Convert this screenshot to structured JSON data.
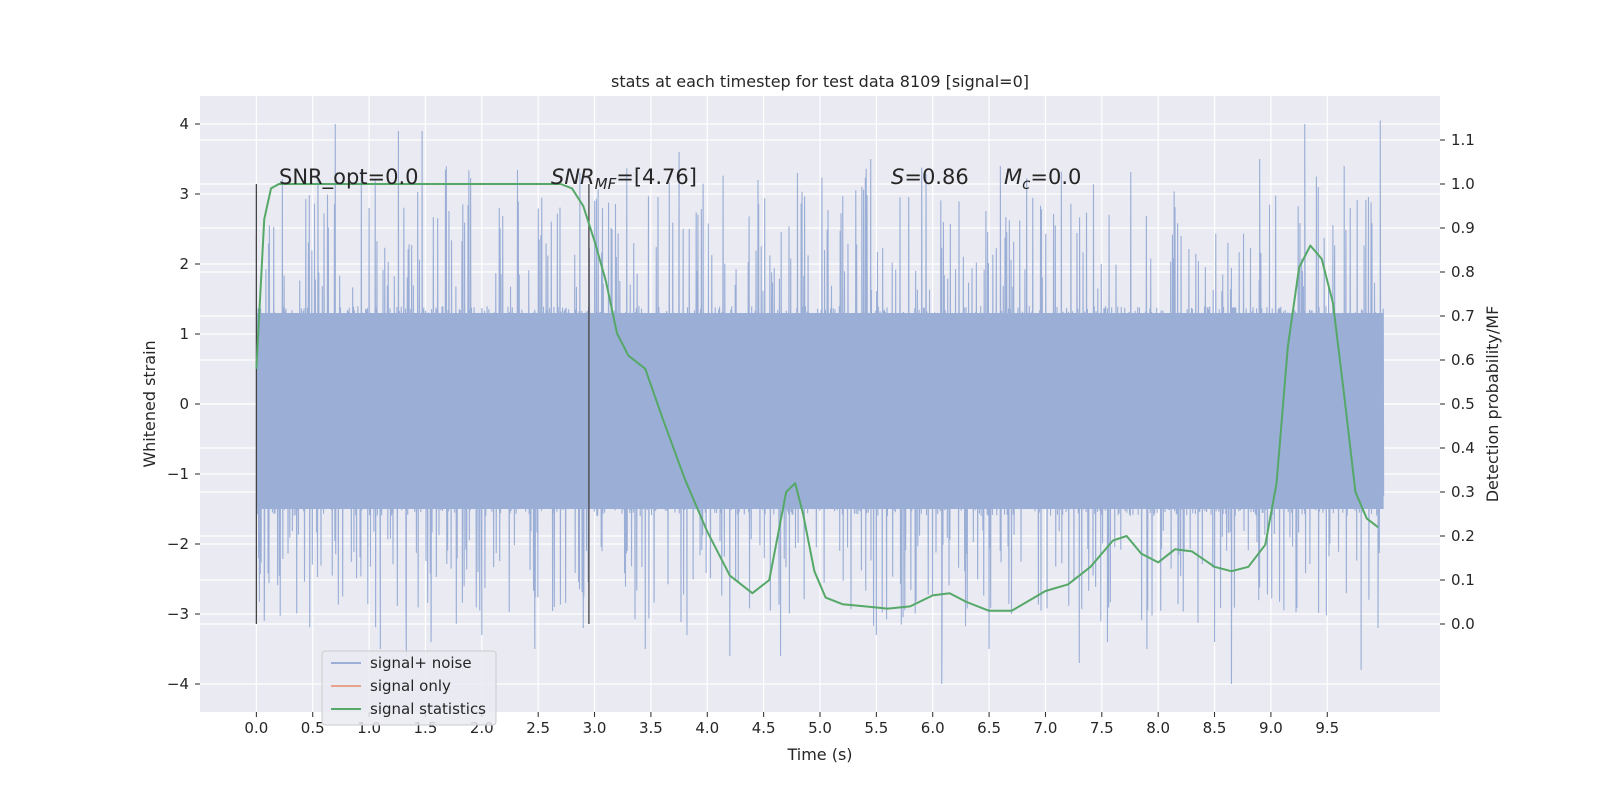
{
  "chart_data": {
    "type": "line",
    "title": "stats at each timestep for test data 8109 [signal=0]",
    "xlabel": "Time (s)",
    "ylabel_left": "Whitened strain",
    "ylabel_right": "Detection probability/MF",
    "xlim": [
      -0.5,
      10.5
    ],
    "ylim_left": [
      -4.4,
      4.4
    ],
    "ylim_right": [
      -0.2,
      1.2
    ],
    "x_ticks": [
      "0.0",
      "0.5",
      "1.0",
      "1.5",
      "2.0",
      "2.5",
      "3.0",
      "3.5",
      "4.0",
      "4.5",
      "5.0",
      "5.5",
      "6.0",
      "6.5",
      "7.0",
      "7.5",
      "8.0",
      "8.5",
      "9.0",
      "9.5"
    ],
    "y_left_ticks": [
      "4",
      "3",
      "2",
      "1",
      "0",
      "−1",
      "−2",
      "−3",
      "−4"
    ],
    "y_right_ticks": [
      "1.1",
      "1.0",
      "0.9",
      "0.8",
      "0.7",
      "0.6",
      "0.5",
      "0.4",
      "0.3",
      "0.2",
      "0.1",
      "0.0"
    ],
    "grid": true,
    "legend_position": "lower-left",
    "annotations": {
      "snr_opt": "SNR_opt=0.0",
      "snr_mf_name": "SNR",
      "snr_mf_sub": "MF",
      "snr_mf_value": "=[4.76]",
      "s_name": "S",
      "s_value": "=0.86",
      "mc_name": "M",
      "mc_sub": "c",
      "mc_value": "=0.0"
    },
    "vlines": [
      0.0,
      2.95
    ],
    "series": [
      {
        "name": "signal+ noise",
        "axis": "left",
        "color": "#9aaed6",
        "x_range": [
          0.0,
          10.0
        ],
        "band_low": -1.5,
        "band_high": 1.3,
        "peak_max": 4.05,
        "peak_min": -4.0,
        "peaks": [
          [
            0.0,
            2.4
          ],
          [
            0.02,
            -2.2
          ],
          [
            0.07,
            -3.1
          ],
          [
            0.7,
            4.0
          ],
          [
            1.1,
            -3.5
          ],
          [
            1.26,
            3.9
          ],
          [
            1.33,
            -3.6
          ],
          [
            1.47,
            3.9
          ],
          [
            1.55,
            -3.4
          ],
          [
            2.0,
            -3.3
          ],
          [
            2.47,
            -3.5
          ],
          [
            2.87,
            3.3
          ],
          [
            2.9,
            -3.2
          ],
          [
            3.45,
            -3.5
          ],
          [
            3.75,
            3.6
          ],
          [
            3.82,
            -3.3
          ],
          [
            4.2,
            -3.6
          ],
          [
            4.45,
            3.2
          ],
          [
            4.65,
            -3.6
          ],
          [
            4.8,
            3.3
          ],
          [
            5.45,
            3.5
          ],
          [
            5.5,
            -3.3
          ],
          [
            6.08,
            -4.0
          ],
          [
            6.5,
            -3.5
          ],
          [
            6.6,
            3.4
          ],
          [
            7.3,
            -3.7
          ],
          [
            7.55,
            -3.4
          ],
          [
            7.9,
            -3.5
          ],
          [
            8.5,
            -3.4
          ],
          [
            8.65,
            -4.0
          ],
          [
            8.9,
            3.5
          ],
          [
            9.3,
            4.0
          ],
          [
            9.42,
            3.1
          ],
          [
            9.65,
            3.4
          ],
          [
            9.8,
            -3.8
          ],
          [
            9.97,
            4.05
          ],
          [
            9.95,
            -3.2
          ]
        ]
      },
      {
        "name": "signal only",
        "axis": "left",
        "color": "#e8a38c",
        "x": [],
        "y": []
      },
      {
        "name": "signal statistics",
        "axis": "right",
        "color": "#55a868",
        "x": [
          0.0,
          0.07,
          0.13,
          0.2,
          0.3,
          0.5,
          1.0,
          1.5,
          2.0,
          2.5,
          2.7,
          2.8,
          2.9,
          2.95,
          3.0,
          3.1,
          3.2,
          3.3,
          3.45,
          3.6,
          3.8,
          4.0,
          4.2,
          4.4,
          4.55,
          4.7,
          4.78,
          4.85,
          4.95,
          5.05,
          5.2,
          5.4,
          5.6,
          5.8,
          6.0,
          6.15,
          6.3,
          6.5,
          6.7,
          6.9,
          7.0,
          7.2,
          7.4,
          7.6,
          7.72,
          7.85,
          8.0,
          8.15,
          8.3,
          8.5,
          8.65,
          8.8,
          8.95,
          9.05,
          9.15,
          9.25,
          9.35,
          9.45,
          9.55,
          9.65,
          9.75,
          9.85,
          9.95
        ],
        "y": [
          0.58,
          0.92,
          0.99,
          1.0,
          1.0,
          1.0,
          1.0,
          1.0,
          1.0,
          1.0,
          1.0,
          0.99,
          0.95,
          0.91,
          0.87,
          0.78,
          0.66,
          0.61,
          0.58,
          0.47,
          0.33,
          0.21,
          0.11,
          0.07,
          0.1,
          0.3,
          0.32,
          0.25,
          0.12,
          0.06,
          0.045,
          0.04,
          0.035,
          0.04,
          0.065,
          0.07,
          0.05,
          0.03,
          0.03,
          0.06,
          0.075,
          0.09,
          0.13,
          0.19,
          0.2,
          0.16,
          0.14,
          0.17,
          0.165,
          0.13,
          0.12,
          0.13,
          0.18,
          0.32,
          0.63,
          0.81,
          0.86,
          0.83,
          0.73,
          0.52,
          0.3,
          0.24,
          0.22
        ]
      }
    ]
  }
}
